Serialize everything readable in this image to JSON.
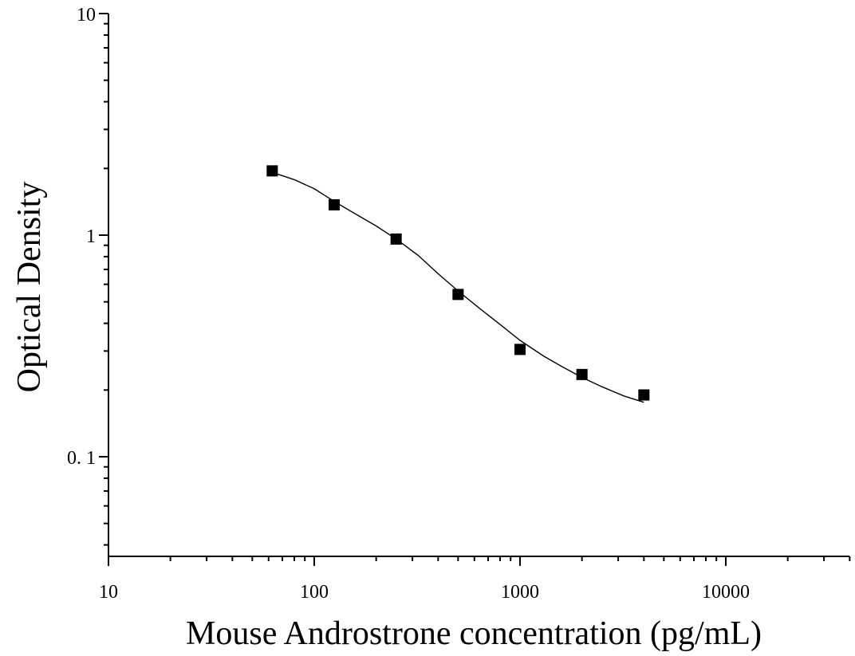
{
  "chart_data": {
    "type": "scatter",
    "title": "",
    "xlabel": "Mouse Androstrone concentration (pg/mL)",
    "ylabel": "Optical Density",
    "x_scale": "log",
    "y_scale": "log",
    "xlim": [
      10,
      40000
    ],
    "ylim": [
      0.04,
      10
    ],
    "x_ticks": [
      {
        "value": 10,
        "label": "10"
      },
      {
        "value": 100,
        "label": "100"
      },
      {
        "value": 1000,
        "label": "1000"
      },
      {
        "value": 10000,
        "label": "10000"
      }
    ],
    "y_ticks": [
      {
        "value": 10,
        "label": "10"
      },
      {
        "value": 1,
        "label": "1"
      },
      {
        "value": 0.1,
        "label": "0. 1"
      }
    ],
    "grid": false,
    "legend": "none",
    "marker": "square",
    "color": "#000000",
    "series": [
      {
        "points": [
          {
            "x": 62.5,
            "y": 1.95
          },
          {
            "x": 125,
            "y": 1.37
          },
          {
            "x": 250,
            "y": 0.96
          },
          {
            "x": 500,
            "y": 0.54
          },
          {
            "x": 1000,
            "y": 0.305
          },
          {
            "x": 2000,
            "y": 0.235
          },
          {
            "x": 4000,
            "y": 0.19
          }
        ]
      }
    ],
    "fit_curve": [
      {
        "x": 62.5,
        "y": 1.92
      },
      {
        "x": 80,
        "y": 1.78
      },
      {
        "x": 100,
        "y": 1.62
      },
      {
        "x": 125,
        "y": 1.42
      },
      {
        "x": 160,
        "y": 1.24
      },
      {
        "x": 200,
        "y": 1.1
      },
      {
        "x": 250,
        "y": 0.96
      },
      {
        "x": 320,
        "y": 0.81
      },
      {
        "x": 400,
        "y": 0.67
      },
      {
        "x": 500,
        "y": 0.56
      },
      {
        "x": 640,
        "y": 0.465
      },
      {
        "x": 800,
        "y": 0.395
      },
      {
        "x": 1000,
        "y": 0.335
      },
      {
        "x": 1300,
        "y": 0.285
      },
      {
        "x": 1600,
        "y": 0.255
      },
      {
        "x": 2000,
        "y": 0.228
      },
      {
        "x": 2500,
        "y": 0.207
      },
      {
        "x": 3200,
        "y": 0.188
      },
      {
        "x": 4000,
        "y": 0.176
      }
    ]
  }
}
